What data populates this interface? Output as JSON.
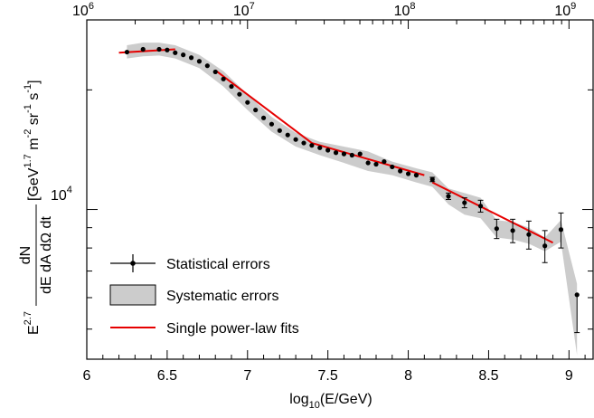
{
  "chart_data": {
    "type": "scatter",
    "title": "",
    "x_axis": {
      "label_main": "log",
      "label_sub": "10",
      "label_rest": "(E/GeV)",
      "range": [
        6.0,
        9.15
      ],
      "ticks": [
        6,
        6.5,
        7,
        7.5,
        8,
        8.5,
        9
      ],
      "tick_labels": [
        "6",
        "6.5",
        "7",
        "7.5",
        "8",
        "8.5",
        "9"
      ]
    },
    "top_axis": {
      "tick_labels": [
        {
          "base": "10",
          "exp": "6",
          "x": 6
        },
        {
          "base": "10",
          "exp": "7",
          "x": 7
        },
        {
          "base": "10",
          "exp": "8",
          "x": 8
        },
        {
          "base": "10",
          "exp": "9",
          "x": 9
        }
      ]
    },
    "y_axis": {
      "scale": "log",
      "range": [
        4200,
        30000
      ],
      "major_tick_label": {
        "base": "10",
        "exp": "4",
        "value": 10000
      },
      "label": {
        "prefix": "E",
        "prefix_exp": "2.7",
        "numerator": "dN",
        "denominator": "dE dA dΩ dt",
        "unit_open": "[GeV",
        "unit_exp1": "1.7",
        "unit_mid1": " m",
        "unit_exp2": "-2",
        "unit_mid2": " sr",
        "unit_exp3": "-1",
        "unit_mid3": " s",
        "unit_exp4": "-1",
        "unit_close": "]"
      }
    },
    "legend": {
      "placement": "lower-left",
      "items": [
        {
          "kind": "points",
          "label": "Statistical errors"
        },
        {
          "kind": "band",
          "label": "Systematic errors"
        },
        {
          "kind": "line",
          "label": "Single power-law fits"
        }
      ]
    },
    "colors": {
      "points": "#000000",
      "band": "#cccccc",
      "fit": "#e60000"
    },
    "series": [
      {
        "kind": "points",
        "x": [
          6.25,
          6.35,
          6.45,
          6.5,
          6.55,
          6.6,
          6.65,
          6.7,
          6.75,
          6.8,
          6.85,
          6.9,
          6.95,
          7.0,
          7.05,
          7.1,
          7.15,
          7.2,
          7.25,
          7.3,
          7.35,
          7.4,
          7.45,
          7.5,
          7.55,
          7.6,
          7.65,
          7.7,
          7.75,
          7.8,
          7.85,
          7.9,
          7.95,
          8.0,
          8.05,
          8.15,
          8.25,
          8.35,
          8.45,
          8.55,
          8.65,
          8.75,
          8.85,
          8.95,
          9.05
        ],
        "y": [
          24900,
          25300,
          25300,
          25200,
          24800,
          24500,
          24100,
          23600,
          23000,
          22200,
          21300,
          20400,
          19500,
          18600,
          17800,
          17000,
          16400,
          15800,
          15400,
          15000,
          14700,
          14500,
          14300,
          14100,
          13900,
          13800,
          13700,
          13800,
          13100,
          13000,
          13200,
          12800,
          12500,
          12300,
          12200,
          11900,
          10800,
          10400,
          10200,
          8950,
          8850,
          8650,
          8100,
          8900,
          6100
        ],
        "err_minus": [
          0,
          0,
          0,
          0,
          0,
          0,
          0,
          0,
          0,
          0,
          0,
          0,
          0,
          0,
          0,
          0,
          0,
          0,
          0,
          0,
          0,
          0,
          0,
          0,
          0,
          0,
          0,
          0,
          0,
          0,
          0,
          0,
          0,
          0,
          0,
          150,
          200,
          300,
          350,
          500,
          600,
          700,
          750,
          900,
          1200
        ],
        "err_plus": [
          0,
          0,
          0,
          0,
          0,
          0,
          0,
          0,
          0,
          0,
          0,
          0,
          0,
          0,
          0,
          0,
          0,
          0,
          0,
          0,
          0,
          0,
          0,
          0,
          0,
          0,
          0,
          0,
          0,
          0,
          0,
          0,
          0,
          0,
          0,
          150,
          200,
          300,
          350,
          500,
          600,
          700,
          750,
          900,
          0
        ]
      },
      {
        "kind": "band",
        "x": [
          6.25,
          6.35,
          6.45,
          6.55,
          6.7,
          6.85,
          7.0,
          7.15,
          7.3,
          7.45,
          7.6,
          7.75,
          7.9,
          8.05,
          8.15,
          8.25,
          8.35,
          8.45,
          8.55,
          8.65,
          8.75,
          8.85,
          8.95,
          9.05
        ],
        "lower": [
          24000,
          24300,
          24400,
          24000,
          22700,
          20400,
          17800,
          15700,
          14400,
          13700,
          13100,
          12500,
          12200,
          11700,
          11400,
          10300,
          9700,
          9500,
          8500,
          8400,
          8200,
          7850,
          8300,
          4300
        ],
        "upper": [
          25900,
          26300,
          26300,
          25900,
          24500,
          22300,
          19500,
          17100,
          15600,
          14800,
          14400,
          14000,
          13200,
          12700,
          12400,
          11300,
          11000,
          10700,
          9400,
          9300,
          9000,
          8500,
          9400,
          6500
        ]
      },
      {
        "kind": "line",
        "segments": [
          {
            "x": [
              6.2,
              6.55
            ],
            "y": [
              24800,
              25300
            ]
          },
          {
            "x": [
              6.8,
              7.4
            ],
            "y": [
              22400,
              14700
            ]
          },
          {
            "x": [
              7.4,
              8.1
            ],
            "y": [
              14700,
              12200
            ]
          },
          {
            "x": [
              8.15,
              8.9
            ],
            "y": [
              11700,
              8250
            ]
          }
        ]
      }
    ]
  }
}
